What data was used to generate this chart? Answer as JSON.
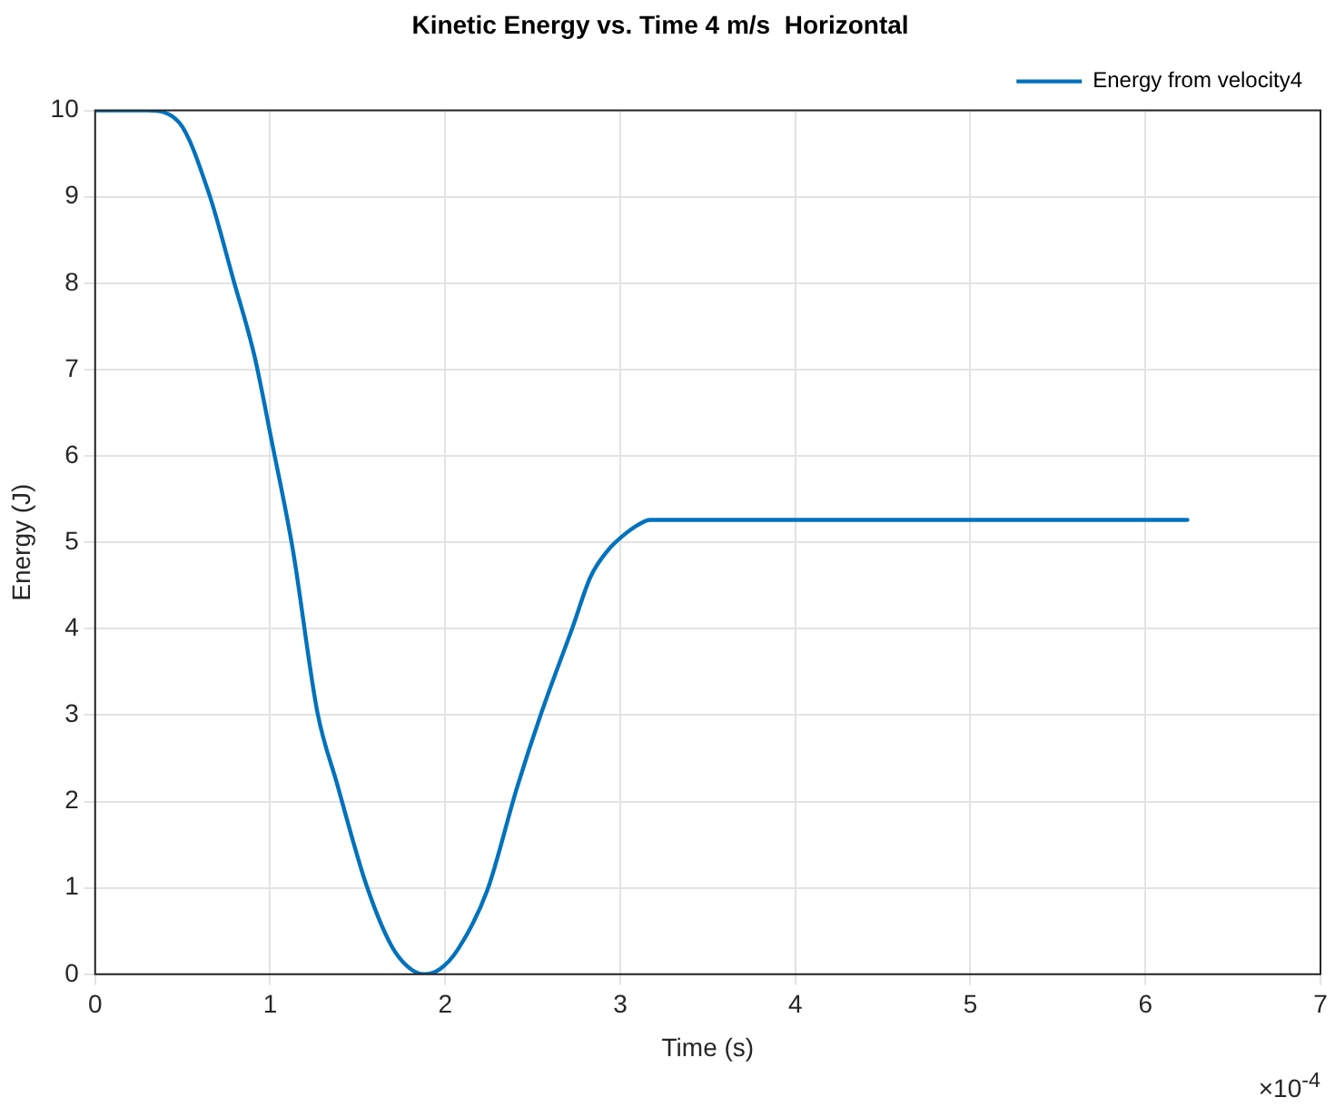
{
  "chart_data": {
    "type": "line",
    "title": "Kinetic Energy vs. Time 4 m/s  Horizontal",
    "xlabel": "Time (s)",
    "ylabel": "Energy (J)",
    "annotations": [
      "×10$^{-4}$"
    ],
    "xlim": [
      0,
      7
    ],
    "xticks": [
      0,
      1,
      2,
      3,
      4,
      5,
      6,
      7
    ],
    "ylim": [
      0,
      10
    ],
    "yticks": [
      0,
      1,
      2,
      3,
      4,
      5,
      6,
      7,
      8,
      9,
      10
    ],
    "grid": true,
    "legend": "top right",
    "marker": "none",
    "line_style": "solid",
    "series": [
      {
        "name": "Energy from velocity4",
        "color": "#0072bd",
        "x": [
          0,
          0.3,
          0.48,
          0.65,
          0.79,
          0.91,
          1.01,
          1.13,
          1.27,
          1.38,
          1.55,
          1.69,
          1.79,
          1.88,
          1.97,
          2.07,
          2.24,
          2.41,
          2.55,
          2.73,
          2.83,
          2.93,
          3.0,
          3.1,
          3.17,
          4,
          5,
          6.24
        ],
        "values": [
          10,
          10,
          9.86,
          9.04,
          8.04,
          7.16,
          6.16,
          4.91,
          3.03,
          2.22,
          1.03,
          0.34,
          0.08,
          0,
          0.06,
          0.28,
          0.97,
          2.16,
          3.03,
          4.03,
          4.6,
          4.91,
          5.05,
          5.2,
          5.26,
          5.26,
          5.26,
          5.26
        ]
      }
    ]
  }
}
